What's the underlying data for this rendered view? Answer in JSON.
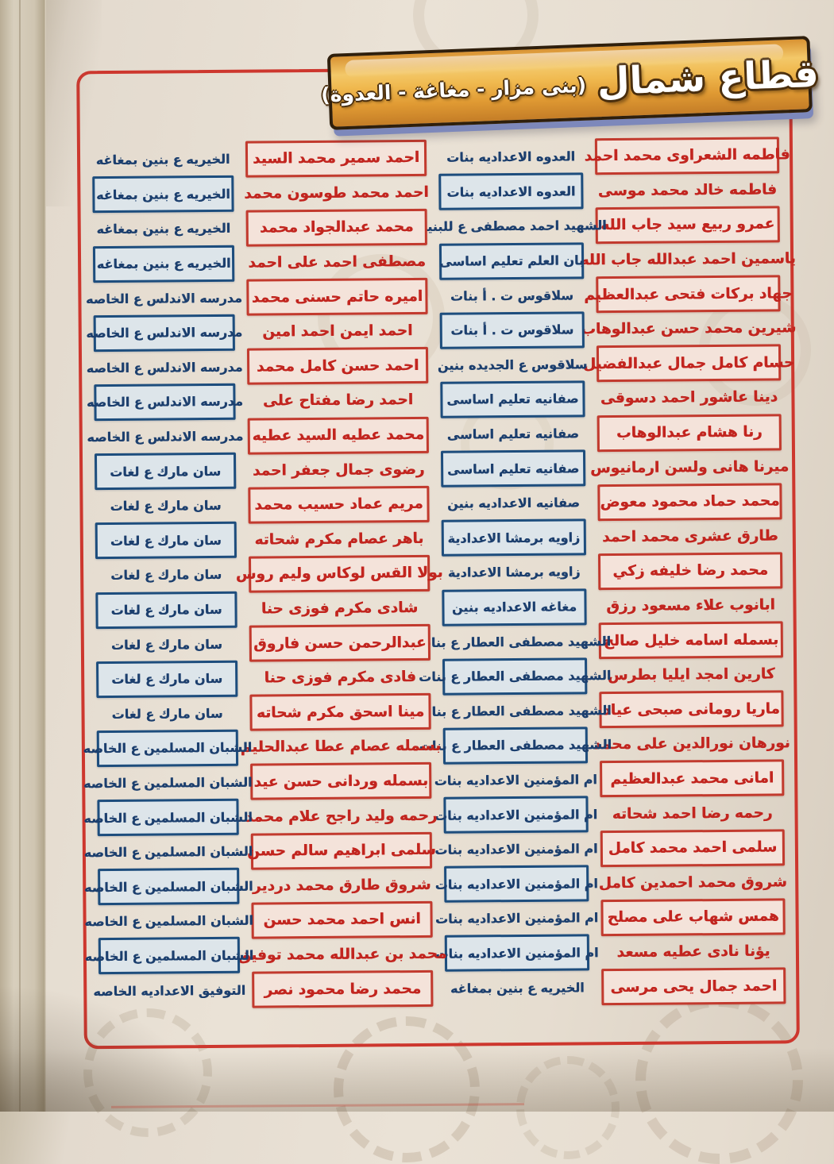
{
  "header": {
    "title": "قطاع شمال",
    "subtitle": "(بنى مزار - مغاغة - العدوة)"
  },
  "colors": {
    "frame_red": "#cd372e",
    "name_text_red": "#c2251f",
    "name_box_fill": "#f4e3da",
    "school_text_navy": "#1c3f6e",
    "school_box_fill": "#dde5ea",
    "school_box_border": "#1d4d7d",
    "banner_gold": "#f0b94f",
    "banner_border": "#2f1f0c",
    "banner_shadow_blue": "#7d88bb",
    "paper_beige": "#e6ddd0"
  },
  "rows": [
    {
      "right": {
        "name": "فاطمه الشعراوى محمد احمد",
        "school": "العدوه الاعداديه بنات"
      },
      "left": {
        "name": "احمد سمير محمد السيد",
        "school": "الخيريه ع بنين بمغاغه"
      }
    },
    {
      "right": {
        "name": "فاطمه خالد محمد موسى",
        "school": "العدوه الاعداديه بنات"
      },
      "left": {
        "name": "احمد محمد طوسون محمد",
        "school": "الخيريه ع بنين بمغاغه"
      }
    },
    {
      "right": {
        "name": "عمرو ربيع سيد جاب الله",
        "school": "الشهيد احمد مصطفى ع للبنين"
      },
      "left": {
        "name": "محمد عبدالجواد محمد",
        "school": "الخيريه ع بنين بمغاغه"
      }
    },
    {
      "right": {
        "name": "ياسمين احمد عبدالله جاب الله",
        "school": "بان العلم تعليم اساسى"
      },
      "left": {
        "name": "مصطفى احمد على احمد",
        "school": "الخيريه ع بنين بمغاغه"
      }
    },
    {
      "right": {
        "name": "جهاد بركات فتحى عبدالعظيم",
        "school": "سلاقوس ت . أ بنات"
      },
      "left": {
        "name": "اميره حاتم حسنى محمد",
        "school": "مدرسه الاندلس ع الخاصه"
      }
    },
    {
      "right": {
        "name": "شيرين محمد حسن عبدالوهاب",
        "school": "سلاقوس ت . أ بنات"
      },
      "left": {
        "name": "احمد ايمن احمد امين",
        "school": "مدرسه الاندلس ع الخاصه"
      }
    },
    {
      "right": {
        "name": "حسام كامل جمال عبدالفضيل",
        "school": "سلاقوس ع الجديده بنين"
      },
      "left": {
        "name": "احمد حسن كامل محمد",
        "school": "مدرسه الاندلس ع الخاصه"
      }
    },
    {
      "right": {
        "name": "دينا عاشور احمد دسوقى",
        "school": "صفانيه تعليم اساسى"
      },
      "left": {
        "name": "احمد رضا مفتاح على",
        "school": "مدرسه الاندلس ع الخاصه"
      }
    },
    {
      "right": {
        "name": "رنا هشام عبدالوهاب",
        "school": "صفانيه تعليم اساسى"
      },
      "left": {
        "name": "محمد عطيه السيد عطيه",
        "school": "مدرسه الاندلس ع الخاصه"
      }
    },
    {
      "right": {
        "name": "ميرنا هانى ولسن ارمانيوس",
        "school": "صفانيه تعليم اساسى"
      },
      "left": {
        "name": "رضوى جمال جعفر احمد",
        "school": "سان مارك ع لغات"
      }
    },
    {
      "right": {
        "name": "محمد حماد محمود معوض",
        "school": "صفانيه الاعداديه بنين"
      },
      "left": {
        "name": "مريم عماد حسيب محمد",
        "school": "سان مارك ع لغات"
      }
    },
    {
      "right": {
        "name": "طارق عشرى محمد احمد",
        "school": "زاويه برمشا الاعدادية"
      },
      "left": {
        "name": "باهر عصام مكرم شحاته",
        "school": "سان مارك ع لغات"
      }
    },
    {
      "right": {
        "name": "محمد رضا خليفه زكي",
        "school": "زاويه برمشا الاعدادية"
      },
      "left": {
        "name": "بولا القس لوكاس وليم روس",
        "school": "سان مارك ع لغات"
      }
    },
    {
      "right": {
        "name": "ابانوب علاء مسعود رزق",
        "school": "مغاغه الاعداديه بنين"
      },
      "left": {
        "name": "شادى مكرم فوزى حنا",
        "school": "سان مارك ع لغات"
      }
    },
    {
      "right": {
        "name": "بسمله اسامه خليل صالح",
        "school": "الشهيد مصطفى العطار ع بنات"
      },
      "left": {
        "name": "عبدالرحمن حسن فاروق",
        "school": "سان مارك ع لغات"
      }
    },
    {
      "right": {
        "name": "كارين امجد ايليا بطرس",
        "school": "الشهيد مصطفى العطار ع بنات"
      },
      "left": {
        "name": "فادى مكرم فوزى حنا",
        "school": "سان مارك ع لغات"
      }
    },
    {
      "right": {
        "name": "ماريا رومانى صبحى عياد",
        "school": "الشهيد مصطفى العطار ع بنات"
      },
      "left": {
        "name": "مينا اسحق مكرم شحاته",
        "school": "سان مارك ع لغات"
      }
    },
    {
      "right": {
        "name": "نورهان نورالدين على محمد",
        "school": "الشهيد مصطفى العطار ع بنات"
      },
      "left": {
        "name": "بسمله عصام عطا عبدالحليم",
        "school": "الشبان المسلمين ع الخاصه"
      }
    },
    {
      "right": {
        "name": "امانى محمد عبدالعظيم",
        "school": "ام المؤمنين الاعداديه بنات"
      },
      "left": {
        "name": "بسمله وردانى حسن عيد",
        "school": "الشبان المسلمين ع الخاصه"
      }
    },
    {
      "right": {
        "name": "رحمه رضا احمد شحاته",
        "school": "ام المؤمنين الاعداديه بنات"
      },
      "left": {
        "name": "رحمه وليد راجح علام محمد",
        "school": "الشبان المسلمين ع الخاصه"
      }
    },
    {
      "right": {
        "name": "سلمى احمد محمد كامل",
        "school": "ام المؤمنين الاعداديه بنات"
      },
      "left": {
        "name": "سلمى ابراهيم سالم حسن",
        "school": "الشبان المسلمين ع الخاصه"
      }
    },
    {
      "right": {
        "name": "شروق محمد احمدين كامل",
        "school": "ام المؤمنين الاعداديه بنات"
      },
      "left": {
        "name": "شروق طارق محمد دردير",
        "school": "الشبان المسلمين ع الخاصه"
      }
    },
    {
      "right": {
        "name": "همس شهاب على مصلح",
        "school": "ام المؤمنين الاعداديه بنات"
      },
      "left": {
        "name": "انس احمد محمد حسن",
        "school": "الشبان المسلمين ع الخاصه"
      }
    },
    {
      "right": {
        "name": "يؤنا نادى عطيه مسعد",
        "school": "ام المؤمنين الاعداديه بنات"
      },
      "left": {
        "name": "محمد بن عبدالله محمد توفيق",
        "school": "الشبان المسلمين ع الخاصه"
      }
    },
    {
      "right": {
        "name": "احمد جمال يحى مرسى",
        "school": "الخيريه ع بنين بمغاغه"
      },
      "left": {
        "name": "محمد رضا محمود نصر",
        "school": "التوفيق الاعداديه الخاصه"
      }
    }
  ]
}
